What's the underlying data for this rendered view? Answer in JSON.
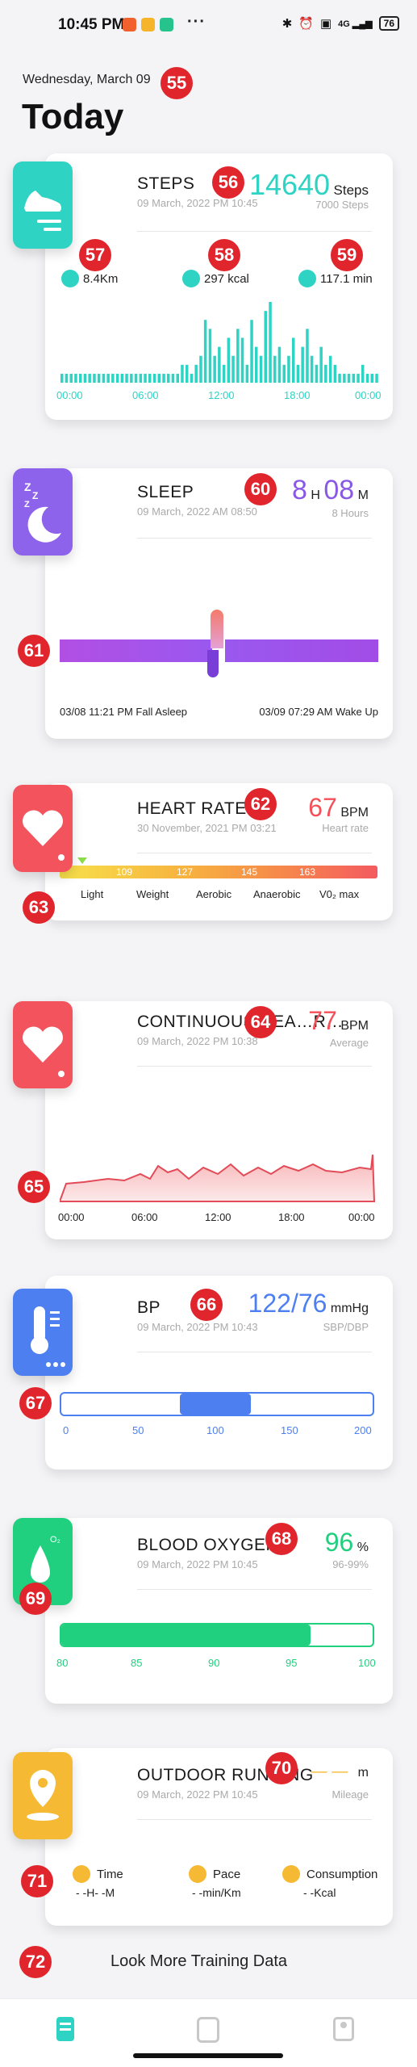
{
  "status_bar": {
    "time": "10:45 PM",
    "more": "···",
    "signal": "4G",
    "battery": "76"
  },
  "header": {
    "date": "Wednesday, March 09",
    "title": "Today"
  },
  "markers": [
    "55",
    "56",
    "57",
    "58",
    "59",
    "60",
    "61",
    "62",
    "63",
    "64",
    "65",
    "66",
    "67",
    "68",
    "69",
    "70",
    "71",
    "72"
  ],
  "steps": {
    "title": "STEPS",
    "date": "09 March, 2022 PM 10:45",
    "value": "14640",
    "unit": "Steps",
    "goal": "7000 Steps",
    "distance": "8.4Km",
    "calories": "297 kcal",
    "duration": "117.1 min",
    "x_labels": [
      "00:00",
      "06:00",
      "12:00",
      "18:00",
      "00:00"
    ],
    "bars": [
      1,
      1,
      1,
      1,
      1,
      1,
      1,
      1,
      1,
      1,
      1,
      1,
      1,
      1,
      1,
      1,
      1,
      1,
      1,
      1,
      1,
      1,
      1,
      1,
      1,
      1,
      2,
      2,
      1,
      2,
      3,
      7,
      6,
      3,
      4,
      2,
      5,
      3,
      6,
      5,
      2,
      7,
      4,
      3,
      8,
      9,
      3,
      4,
      2,
      3,
      5,
      2,
      4,
      6,
      3,
      2,
      4,
      2,
      3,
      2,
      1,
      1,
      1,
      1,
      1,
      2,
      1,
      1,
      1
    ]
  },
  "sleep": {
    "title": "SLEEP",
    "date": "09 March, 2022 AM 08:50",
    "hours": "8",
    "hours_unit": "H",
    "minutes": "08",
    "minutes_unit": "M",
    "goal": "8 Hours",
    "fall_asleep": "03/08 11:21 PM Fall Asleep",
    "wake_up": "03/09 07:29 AM Wake Up"
  },
  "heart_rate": {
    "title": "HEART RATE",
    "date": "30 November, 2021 PM 03:21",
    "value": "67",
    "unit": "BPM",
    "sub": "Heart rate",
    "zone_ticks": [
      "109",
      "127",
      "145",
      "163"
    ],
    "zones": [
      "Light",
      "Weight",
      "Aerobic",
      "Anaerobic",
      "V0₂ max"
    ]
  },
  "continuous_hr": {
    "title": "CONTINUOUS HEA…R…",
    "date": "09 March, 2022 PM 10:38",
    "value": "77",
    "unit": "BPM",
    "sub": "Average",
    "x_labels": [
      "00:00",
      "06:00",
      "12:00",
      "18:00",
      "00:00"
    ]
  },
  "bp": {
    "title": "BP",
    "date": "09 March, 2022 PM 10:43",
    "value": "122/76",
    "unit": "mmHg",
    "sub": "SBP/DBP",
    "ticks": [
      "0",
      "50",
      "100",
      "150",
      "200"
    ],
    "range_low": 76,
    "range_high": 122,
    "scale_max": 200
  },
  "blood_oxygen": {
    "title": "BLOOD OXYGEN",
    "date": "09 March, 2022 PM 10:45",
    "value": "96",
    "unit": "%",
    "sub": "96-99%",
    "ticks": [
      "80",
      "85",
      "90",
      "95",
      "100"
    ],
    "level": 96,
    "scale_min": 80,
    "scale_max": 100,
    "icon_label": "O₂"
  },
  "running": {
    "title": "OUTDOOR RUNNING",
    "date": "09 March, 2022 PM 10:45",
    "value": "— —",
    "unit": "m",
    "sub": "Mileage",
    "time_label": "Time",
    "time_value": "- -H- -M",
    "pace_label": "Pace",
    "pace_value": "- -min/Km",
    "consumption_label": "Consumption",
    "consumption_value": "- -Kcal"
  },
  "more_link": "Look More Training Data",
  "colors": {
    "steps": "#2fd3c4",
    "sleep": "#8a58e6",
    "heart": "#f4505a",
    "bp": "#4d7ff0",
    "oxygen": "#21d07e",
    "running": "#f6b933"
  }
}
